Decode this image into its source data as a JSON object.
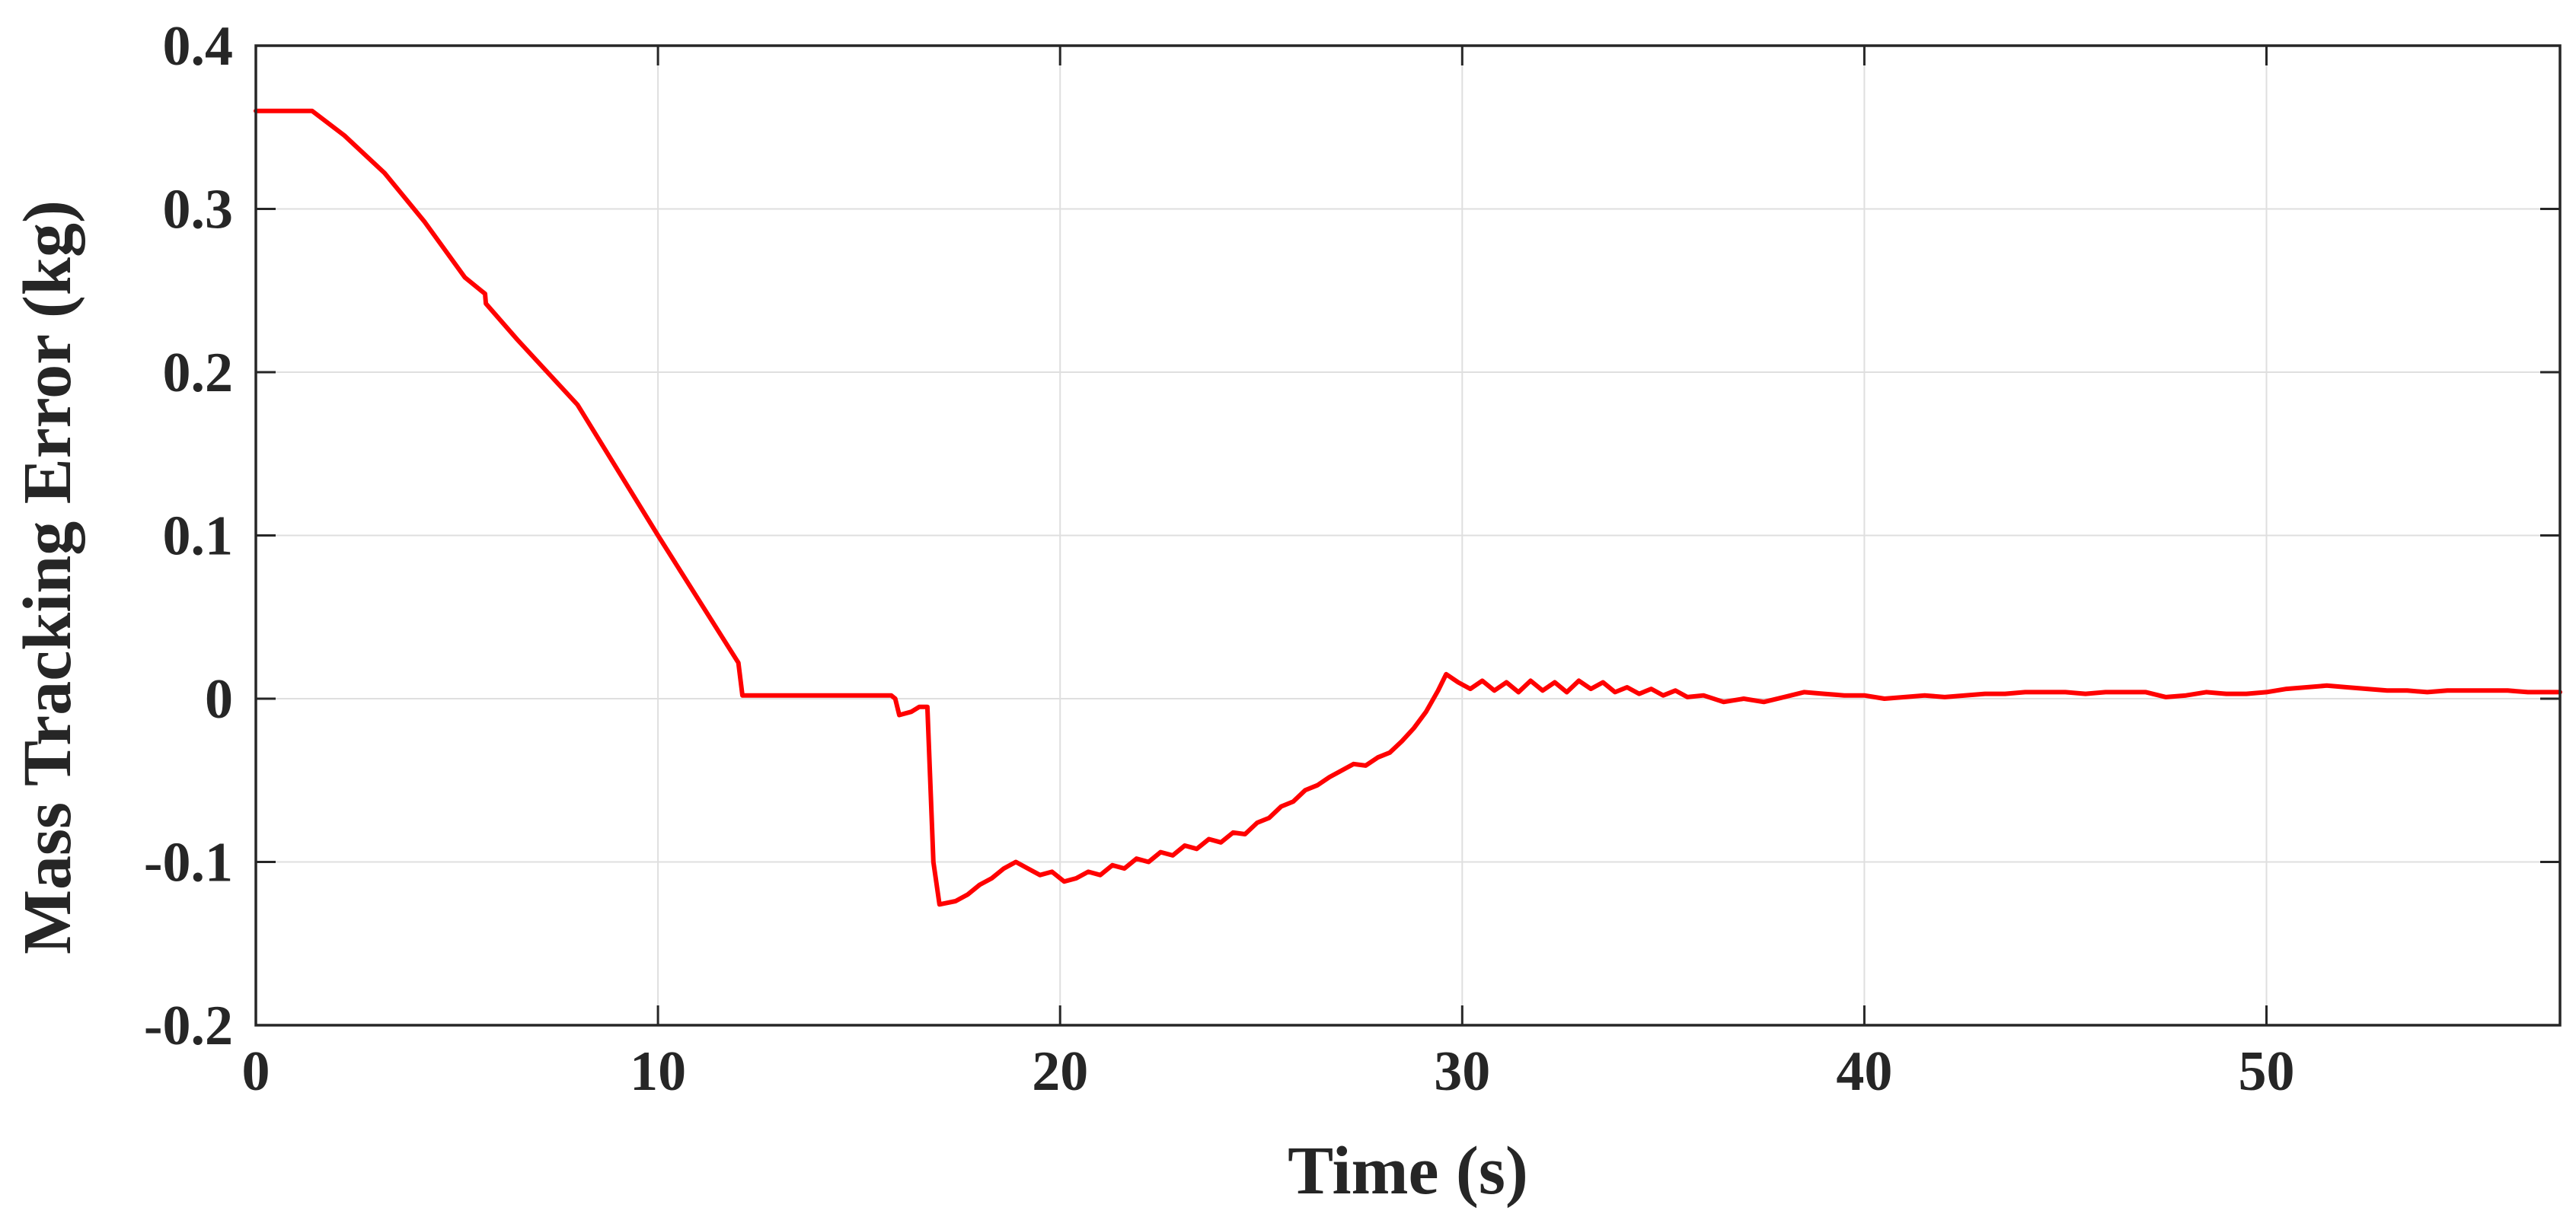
{
  "chart_data": {
    "type": "line",
    "title": "",
    "xlabel": "Time (s)",
    "ylabel": "Mass Tracking Error (kg)",
    "xlim": [
      0,
      57.3
    ],
    "ylim": [
      -0.2,
      0.4
    ],
    "xticks": [
      0,
      10,
      20,
      30,
      40,
      50
    ],
    "xtick_labels": [
      "0",
      "10",
      "20",
      "30",
      "40",
      "50"
    ],
    "yticks": [
      -0.2,
      -0.1,
      0,
      0.1,
      0.2,
      0.3,
      0.4
    ],
    "ytick_labels": [
      "-0.2",
      "-0.1",
      "0",
      "0.1",
      "0.2",
      "0.3",
      "0.4"
    ],
    "grid": true,
    "legend": "none",
    "series": [
      {
        "color": "#ff0000",
        "x": [
          0,
          1.4,
          2.2,
          3.2,
          4.2,
          5.2,
          5.7,
          5.72,
          6.5,
          8,
          10,
          12,
          12.1,
          15.8,
          15.9,
          16.0,
          16.3,
          16.5,
          16.7,
          16.85,
          17.0,
          17.4,
          17.7,
          18.0,
          18.3,
          18.6,
          18.9,
          19.2,
          19.5,
          19.8,
          20.1,
          20.4,
          20.7,
          21.0,
          21.3,
          21.6,
          21.9,
          22.2,
          22.5,
          22.8,
          23.1,
          23.4,
          23.7,
          24.0,
          24.3,
          24.6,
          24.9,
          25.2,
          25.5,
          25.8,
          26.1,
          26.4,
          26.7,
          27.0,
          27.3,
          27.6,
          27.9,
          28.2,
          28.5,
          28.8,
          29.1,
          29.4,
          29.6,
          29.9,
          30.2,
          30.5,
          30.8,
          31.1,
          31.4,
          31.7,
          32.0,
          32.3,
          32.6,
          32.9,
          33.2,
          33.5,
          33.8,
          34.1,
          34.4,
          34.7,
          35.0,
          35.3,
          35.6,
          36.0,
          36.5,
          37.0,
          37.5,
          38.0,
          38.5,
          39.0,
          39.5,
          40.0,
          40.5,
          41.0,
          41.5,
          42.0,
          42.5,
          43.0,
          43.5,
          44.0,
          44.5,
          45.0,
          45.5,
          46.0,
          46.5,
          47.0,
          47.5,
          48.0,
          48.5,
          49.0,
          49.5,
          50.0,
          50.5,
          51.0,
          51.5,
          52.0,
          52.5,
          53.0,
          53.5,
          54.0,
          54.5,
          55.0,
          55.5,
          56.0,
          56.5,
          57.0,
          57.3
        ],
        "y": [
          0.36,
          0.36,
          0.345,
          0.322,
          0.292,
          0.258,
          0.248,
          0.242,
          0.22,
          0.18,
          0.1,
          0.022,
          0.002,
          0.002,
          0.0,
          -0.01,
          -0.008,
          -0.005,
          -0.005,
          -0.1,
          -0.126,
          -0.124,
          -0.12,
          -0.114,
          -0.11,
          -0.104,
          -0.1,
          -0.104,
          -0.108,
          -0.106,
          -0.112,
          -0.11,
          -0.106,
          -0.108,
          -0.102,
          -0.104,
          -0.098,
          -0.1,
          -0.094,
          -0.096,
          -0.09,
          -0.092,
          -0.086,
          -0.088,
          -0.082,
          -0.083,
          -0.076,
          -0.073,
          -0.066,
          -0.063,
          -0.056,
          -0.053,
          -0.048,
          -0.044,
          -0.04,
          -0.041,
          -0.036,
          -0.033,
          -0.026,
          -0.018,
          -0.008,
          0.005,
          0.015,
          0.01,
          0.006,
          0.011,
          0.005,
          0.01,
          0.004,
          0.011,
          0.005,
          0.01,
          0.004,
          0.011,
          0.006,
          0.01,
          0.004,
          0.007,
          0.003,
          0.006,
          0.002,
          0.005,
          0.001,
          0.002,
          -0.002,
          0.0,
          -0.002,
          0.001,
          0.004,
          0.003,
          0.002,
          0.002,
          0.0,
          0.001,
          0.002,
          0.001,
          0.002,
          0.003,
          0.003,
          0.004,
          0.004,
          0.004,
          0.003,
          0.004,
          0.004,
          0.004,
          0.001,
          0.002,
          0.004,
          0.003,
          0.003,
          0.004,
          0.006,
          0.007,
          0.008,
          0.007,
          0.006,
          0.005,
          0.005,
          0.004,
          0.005,
          0.005,
          0.005,
          0.005,
          0.004,
          0.004,
          0.004
        ]
      }
    ]
  }
}
